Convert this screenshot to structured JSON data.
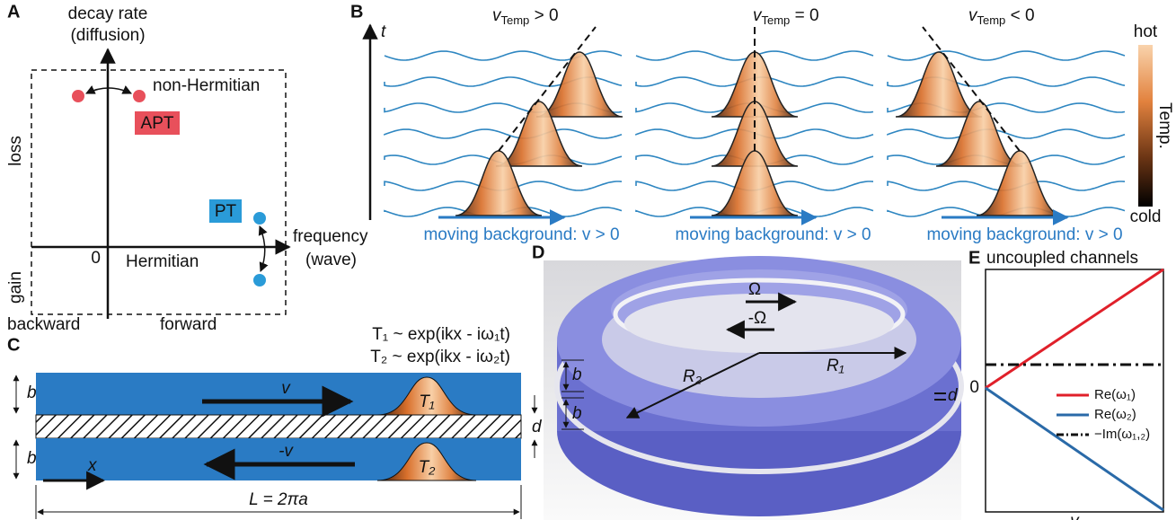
{
  "panel_a": {
    "label": "A",
    "y_axis": [
      "decay rate",
      "(diffusion)"
    ],
    "x_axis": [
      "frequency",
      "(wave)"
    ],
    "origin": "0",
    "regions": {
      "top": "non-Hermitian",
      "bottom": "Hermitian",
      "left_top": "loss",
      "left_bottom": "gain",
      "bottom_left": "backward",
      "bottom_right": "forward"
    },
    "tags": [
      "APT",
      "PT"
    ]
  },
  "panel_b": {
    "label": "B",
    "axis": "t",
    "velocity_labels": [
      {
        "v": "v",
        "sub": "Temp",
        "rel": " > 0"
      },
      {
        "v": "v",
        "sub": "Temp",
        "rel": " = 0"
      },
      {
        "v": "v",
        "sub": "Temp",
        "rel": " < 0"
      }
    ],
    "background_labels": [
      "moving background: v > 0",
      "moving background: v > 0",
      "moving background: v > 0"
    ],
    "colorbar": {
      "top": "hot",
      "title": "Temp.",
      "bottom": "cold"
    }
  },
  "panel_c": {
    "label": "C",
    "equations": [
      "T₁ ~ exp(ikx - iω₁t)",
      "T₂ ~ exp(ikx - iω₂t)"
    ],
    "widths": [
      "b",
      "b"
    ],
    "velocities": [
      "v",
      "-v"
    ],
    "pulses": [
      "T₁",
      "T₂"
    ],
    "gap": "d",
    "coordinate": "x",
    "length": "L = 2πa"
  },
  "panel_d": {
    "label": "D",
    "rotations": [
      "Ω",
      "-Ω"
    ],
    "radii": [
      "R₂",
      "R₁"
    ],
    "widths": [
      "b",
      "b"
    ],
    "gap": "d"
  },
  "panel_e": {
    "label": "E",
    "title": "uncoupled channels",
    "y_origin": "0",
    "legend": [
      "Re(ω₁)",
      "Re(ω₂)",
      "−Im(ω₁,₂)"
    ],
    "x_label": "v"
  }
}
